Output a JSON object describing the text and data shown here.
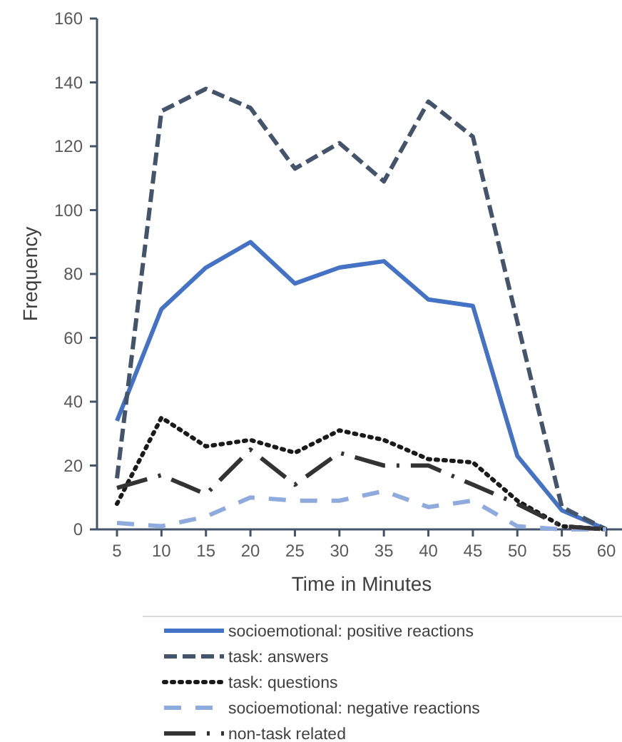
{
  "chart_data": {
    "type": "line",
    "xlabel": "Time in Minutes",
    "ylabel": "Frequency",
    "categories": [
      "5",
      "10",
      "15",
      "20",
      "25",
      "30",
      "35",
      "40",
      "45",
      "50",
      "55",
      "60"
    ],
    "ylim": [
      0,
      160
    ],
    "yticks": [
      0,
      20,
      40,
      60,
      80,
      100,
      120,
      140,
      160
    ],
    "grid": false,
    "legend": "bottom",
    "marker": "none",
    "series": [
      {
        "name": "socioemotional: positive reactions",
        "color": "#4472c4",
        "line_style": "solid",
        "values": [
          34,
          69,
          82,
          90,
          77,
          82,
          84,
          72,
          70,
          23,
          6,
          0
        ]
      },
      {
        "name": "task: answers",
        "color": "#44546a",
        "line_style": "dashed",
        "values": [
          16,
          131,
          138,
          132,
          113,
          121,
          109,
          134,
          123,
          65,
          7,
          0
        ]
      },
      {
        "name": "task: questions",
        "color": "#1a1a1a",
        "line_style": "dotted",
        "values": [
          8,
          35,
          26,
          28,
          24,
          31,
          28,
          22,
          21,
          9,
          1,
          0
        ]
      },
      {
        "name": "socioemotional: negative reactions",
        "color": "#8faadc",
        "line_style": "dashed",
        "values": [
          2,
          1,
          4,
          10,
          9,
          9,
          12,
          7,
          9,
          1,
          0,
          0
        ]
      },
      {
        "name": "non-task related",
        "color": "#333333",
        "line_style": "dashed",
        "values": [
          13,
          17,
          11,
          25,
          14,
          24,
          20,
          20,
          14,
          8,
          1,
          0
        ]
      }
    ]
  }
}
